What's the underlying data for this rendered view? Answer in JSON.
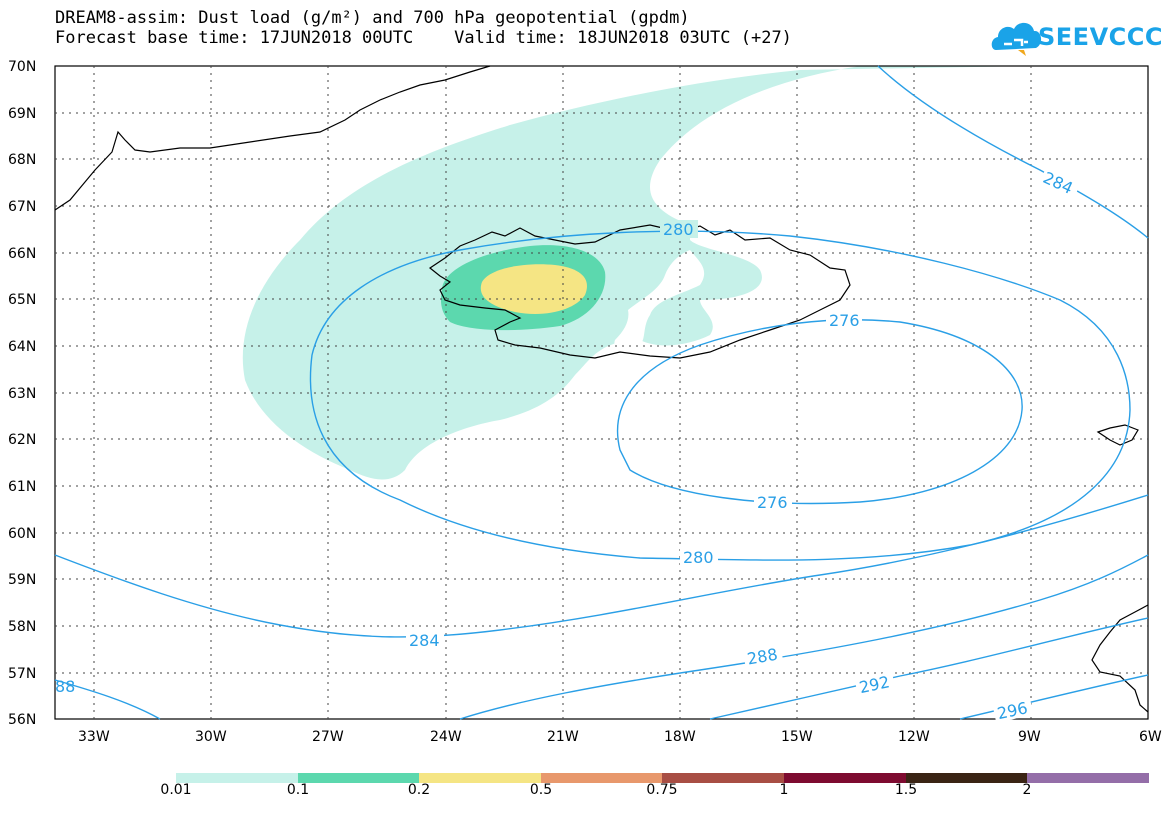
{
  "header": {
    "title_line1": "DREAM8-assim: Dust load (g/m²) and 700 hPa geopotential (gpdm)",
    "title_line2": "Forecast base time: 17JUN2018 00UTC    Valid time: 18JUN2018 03UTC (+27)"
  },
  "logo": {
    "text": "SEEVCCC",
    "icon": "cloud-icon",
    "color": "#1aa3e8"
  },
  "map": {
    "lat_labels": [
      "70N",
      "69N",
      "68N",
      "67N",
      "66N",
      "65N",
      "64N",
      "63N",
      "62N",
      "61N",
      "60N",
      "59N",
      "58N",
      "57N",
      "56N"
    ],
    "lon_labels": [
      "33W",
      "30W",
      "27W",
      "24W",
      "21W",
      "18W",
      "15W",
      "12W",
      "9W",
      "6W"
    ],
    "contour_color": "#2a9fe6",
    "contour_labels": [
      "280",
      "284",
      "276",
      "276",
      "280",
      "284",
      "288",
      "292",
      "296",
      "88"
    ]
  },
  "colorbar": {
    "colors": [
      "#c6f1e9",
      "#5cd8ae",
      "#f5e584",
      "#e8986c",
      "#a84e44",
      "#7e0b30",
      "#3a2414",
      "#946ea8"
    ],
    "labels": [
      "0.01",
      "0.1",
      "0.2",
      "0.5",
      "0.75",
      "1",
      "1.5",
      "2"
    ]
  }
}
